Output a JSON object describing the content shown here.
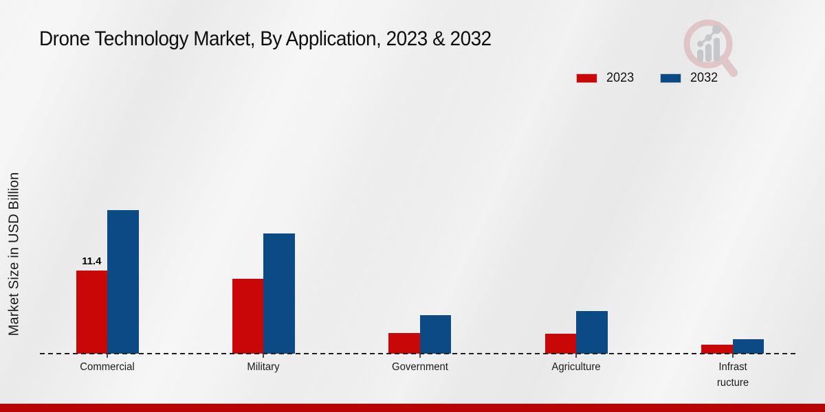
{
  "title": "Drone Technology Market, By Application, 2023 & 2032",
  "y_axis_label": "Market Size in USD Billion",
  "legend": {
    "items": [
      {
        "label": "2023",
        "color": "#c90707"
      },
      {
        "label": "2032",
        "color": "#0b4a84"
      }
    ]
  },
  "colors": {
    "bar_red_2023": "#c90707",
    "bar_blue_2032": "#0b4a84",
    "footer_band_red": "#b80404",
    "baseline_dash": "#1f1f1f",
    "background_gray": "#ededed"
  },
  "logo": {
    "name": "market-research-watermark-logo"
  },
  "footer": {
    "band_color": "#b80404"
  },
  "chart_data": {
    "type": "bar",
    "title": "Drone Technology Market, By Application, 2023 & 2032",
    "xlabel": "",
    "ylabel": "Market Size in USD Billion",
    "categories": [
      "Commercial",
      "Military",
      "Government",
      "Agriculture",
      "Infrastructure"
    ],
    "category_display_labels": [
      "Commercial",
      "Military",
      "Government",
      "Agriculture",
      "Infrast\nructure"
    ],
    "series": [
      {
        "name": "2023",
        "color": "#c90707",
        "values": [
          11.4,
          10.3,
          2.8,
          2.7,
          1.2
        ],
        "data_labels": [
          "11.4",
          "",
          "",
          "",
          ""
        ]
      },
      {
        "name": "2032",
        "color": "#0b4a84",
        "values": [
          19.7,
          16.5,
          5.3,
          5.8,
          2.0
        ],
        "data_labels": [
          "",
          "",
          "",
          "",
          ""
        ]
      }
    ],
    "annotations": [
      {
        "series": "2023",
        "category": "Commercial",
        "text": "11.4"
      }
    ],
    "ylim": [
      0,
      22
    ],
    "grid": false,
    "axis_ticks_visible": false,
    "legend_position": "top-right",
    "baseline_style": "dashed"
  }
}
